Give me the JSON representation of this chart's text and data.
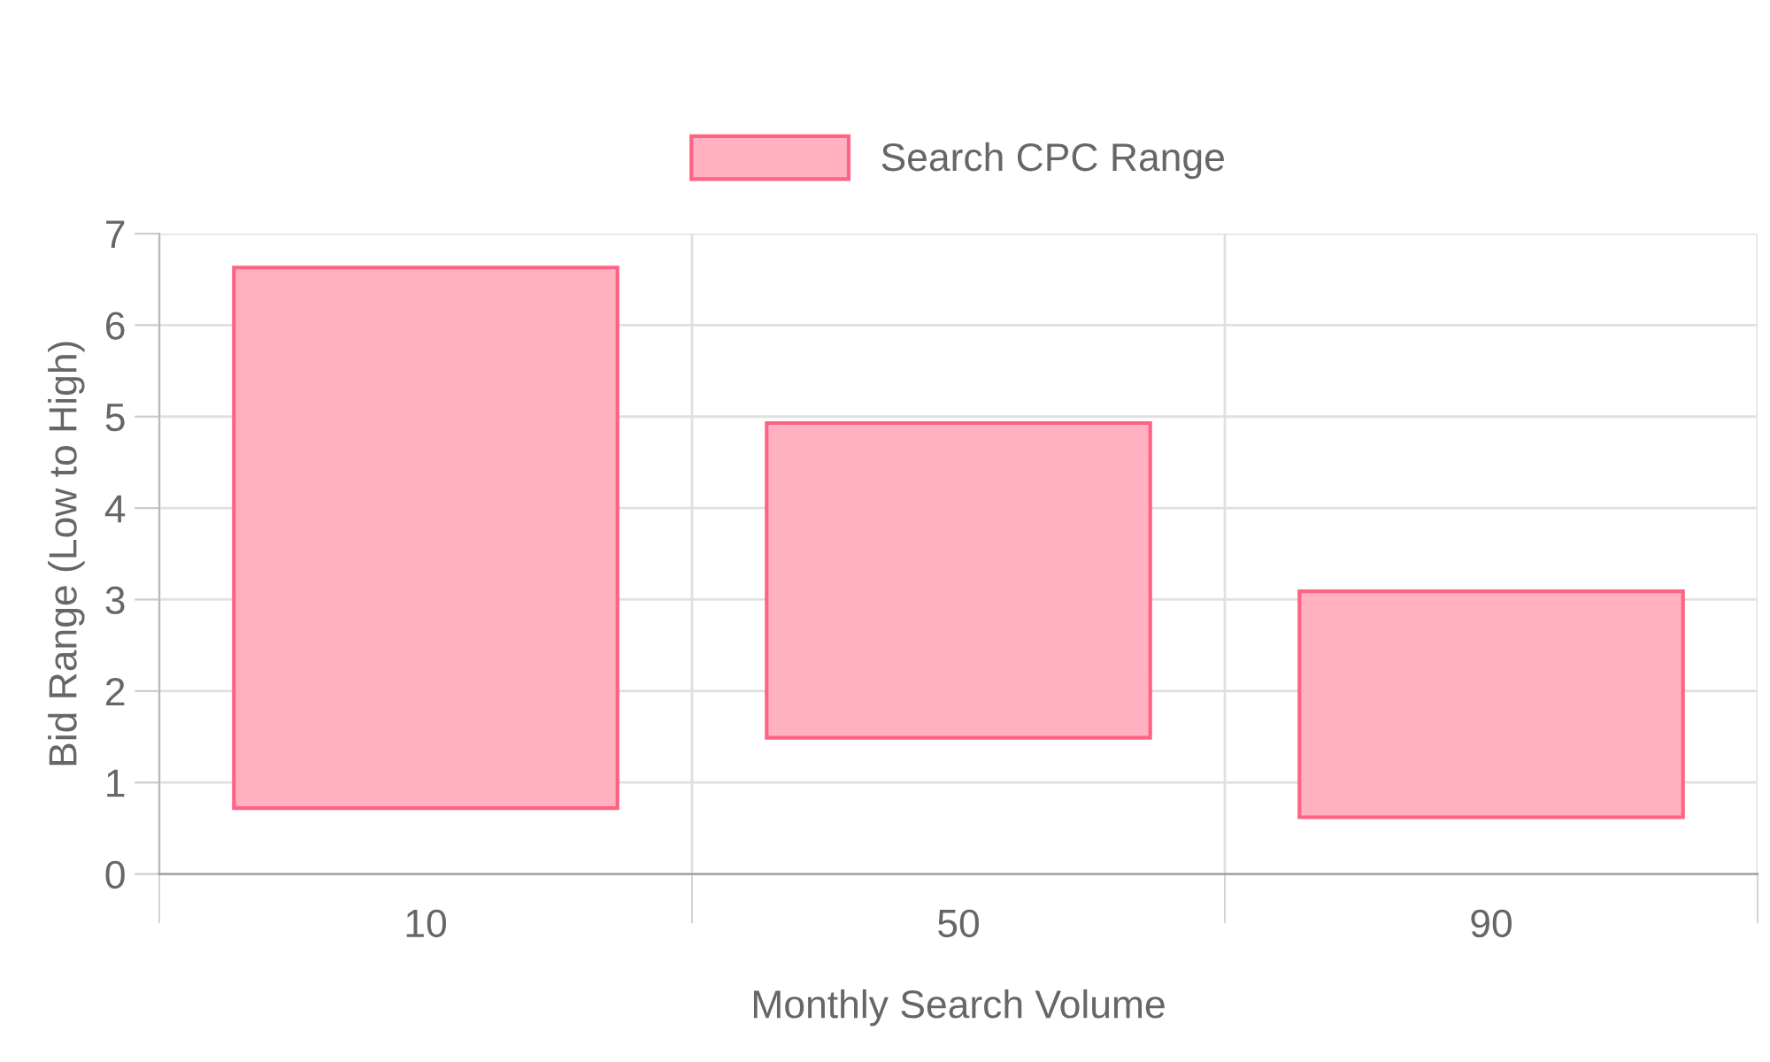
{
  "chart_data": {
    "type": "bar",
    "xlabel": "Monthly Search Volume",
    "ylabel": "Bid Range (Low to High)",
    "categories": [
      "10",
      "50",
      "90"
    ],
    "series": [
      {
        "name": "Search CPC Range",
        "color": "#ffb1c1",
        "base": [
          0.72,
          1.49,
          0.62
        ],
        "values": [
          5.91,
          3.44,
          2.47
        ]
      }
    ],
    "ylim": [
      0,
      7
    ],
    "yticks": [
      0,
      1,
      2,
      3,
      4,
      5,
      6,
      7
    ],
    "grid": true,
    "legend": "top"
  }
}
